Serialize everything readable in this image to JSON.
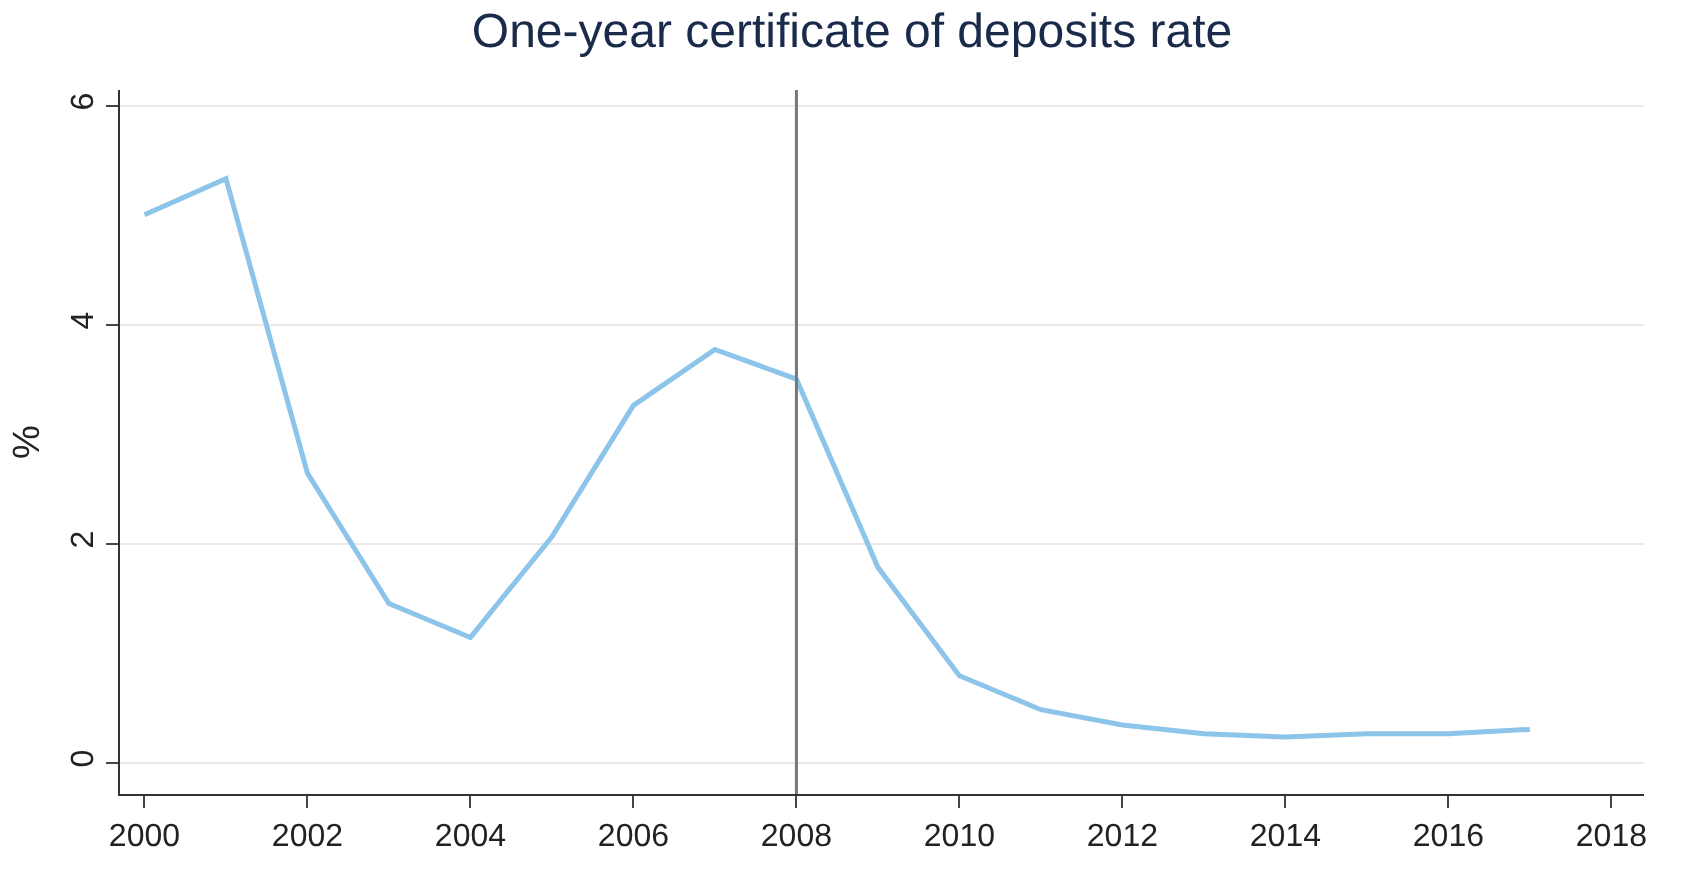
{
  "chart_data": {
    "type": "line",
    "title": "One-year certificate of deposits rate",
    "ylabel": "%",
    "x": [
      2000,
      2001,
      2002,
      2003,
      2004,
      2005,
      2006,
      2007,
      2008,
      2009,
      2010,
      2011,
      2012,
      2013,
      2014,
      2015,
      2016,
      2017
    ],
    "series": [
      {
        "color": "#8cc4ea",
        "values": [
          5.01,
          5.34,
          2.65,
          1.46,
          1.15,
          2.07,
          3.27,
          3.78,
          3.51,
          1.79,
          0.8,
          0.49,
          0.35,
          0.27,
          0.24,
          0.27,
          0.27,
          0.31
        ]
      }
    ],
    "xlim": [
      1999.7,
      2018.4
    ],
    "xticks": [
      2000,
      2002,
      2004,
      2006,
      2008,
      2010,
      2012,
      2014,
      2016,
      2018
    ],
    "ylim": [
      -0.28,
      6.15
    ],
    "yticks": [
      0,
      2,
      4,
      6
    ],
    "ref_lines": [
      {
        "axis": "x",
        "value": 2008,
        "color": "#777777"
      }
    ],
    "grid": "y",
    "marker": "none",
    "line_style": "solid"
  }
}
